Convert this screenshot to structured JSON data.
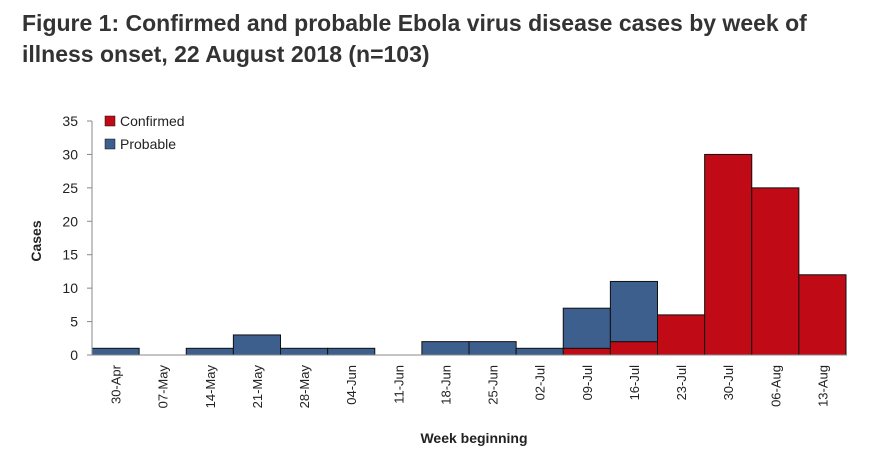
{
  "title": "Figure 1: Confirmed and probable Ebola virus disease cases by week of illness onset, 22 August 2018 (n=103)",
  "chart_data": {
    "type": "bar",
    "stacked": true,
    "categories": [
      "30-Apr",
      "07-May",
      "14-May",
      "21-May",
      "28-May",
      "04-Jun",
      "11-Jun",
      "18-Jun",
      "25-Jun",
      "02-Jul",
      "09-Jul",
      "16-Jul",
      "23-Jul",
      "30-Jul",
      "06-Aug",
      "13-Aug"
    ],
    "series": [
      {
        "name": "Confirmed",
        "color": "#c00a16",
        "values": [
          0,
          0,
          0,
          0,
          0,
          0,
          0,
          0,
          0,
          0,
          1,
          2,
          6,
          30,
          25,
          12
        ]
      },
      {
        "name": "Probable",
        "color": "#3c5f8e",
        "values": [
          1,
          0,
          1,
          3,
          1,
          1,
          0,
          2,
          2,
          1,
          6,
          9,
          0,
          0,
          0,
          0
        ]
      }
    ],
    "xlabel": "Week beginning",
    "ylabel": "Cases",
    "ylim": [
      0,
      35
    ],
    "yticks": [
      0,
      5,
      10,
      15,
      20,
      25,
      30,
      35
    ],
    "grid": false,
    "legend": "top-left"
  }
}
